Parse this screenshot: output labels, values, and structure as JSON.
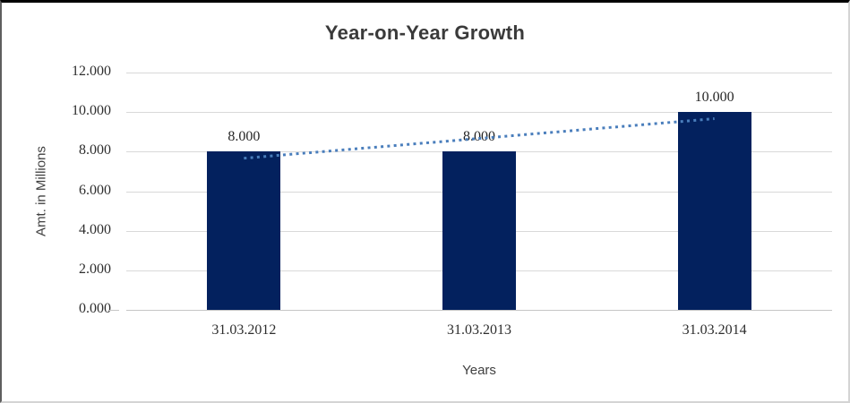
{
  "chart_data": {
    "type": "bar",
    "title": "Year-on-Year Growth",
    "xlabel": "Years",
    "ylabel": "Amt. in Millions",
    "categories": [
      "31.03.2012",
      "31.03.2013",
      "31.03.2014"
    ],
    "values": [
      8.0,
      8.0,
      10.0
    ],
    "data_labels": [
      "8.000",
      "8.000",
      "10.000"
    ],
    "yticks": [
      "12.000",
      "10.000",
      "8.000",
      "6.000",
      "4.000",
      "2.000",
      "0.000"
    ],
    "ylim": [
      0,
      12
    ],
    "ytick_step": 2,
    "grid": true,
    "legend": "none",
    "trendline": {
      "type": "linear",
      "style": "dotted",
      "start_value": 7.667,
      "end_value": 9.667,
      "color": "#4a7ebc"
    },
    "colors": {
      "bar": "#03215e",
      "gridline": "#d9d9d9",
      "axis_line": "#c6c6c6",
      "trendline": "#4a7ebc",
      "title_text": "#3a3a3a",
      "tick_text": "#2e2e2e"
    }
  }
}
